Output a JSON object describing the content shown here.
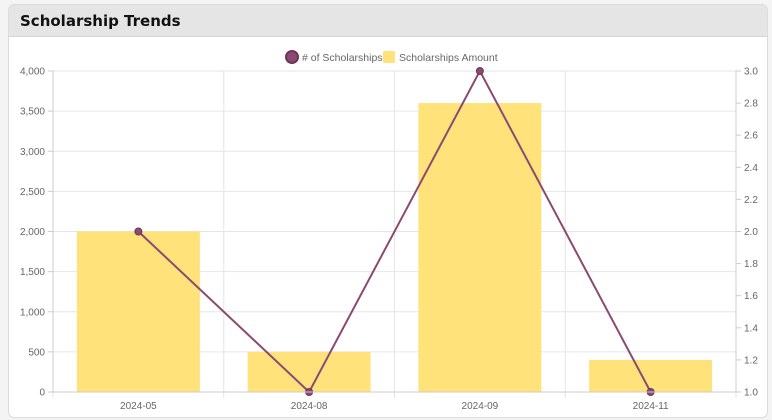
{
  "card": {
    "title": "Scholarship Trends"
  },
  "chart_data": {
    "type": "bar",
    "title": "",
    "categories": [
      "2024-05",
      "2024-08",
      "2024-09",
      "2024-11"
    ],
    "series": [
      {
        "name": "Scholarships Amount",
        "type": "bar",
        "axis": "left",
        "values": [
          2000,
          500,
          3600,
          400
        ],
        "color": "#ffe27a"
      },
      {
        "name": "# of Scholarships",
        "type": "line",
        "axis": "right",
        "values": [
          2,
          1,
          3,
          1
        ],
        "color": "#8b4a72"
      }
    ],
    "y_left": {
      "min": 0,
      "max": 4000,
      "ticks": [
        "0",
        "500",
        "1,000",
        "1,500",
        "2,000",
        "2,500",
        "3,000",
        "3,500",
        "4,000"
      ]
    },
    "y_right": {
      "min": 1.0,
      "max": 3.0,
      "ticks": [
        "1.0",
        "1.2",
        "1.4",
        "1.6",
        "1.8",
        "2.0",
        "2.2",
        "2.4",
        "2.6",
        "2.8",
        "3.0"
      ]
    },
    "legend": {
      "position": "top-center",
      "entries": [
        "# of Scholarships",
        "Scholarships Amount"
      ]
    },
    "grid": true
  }
}
